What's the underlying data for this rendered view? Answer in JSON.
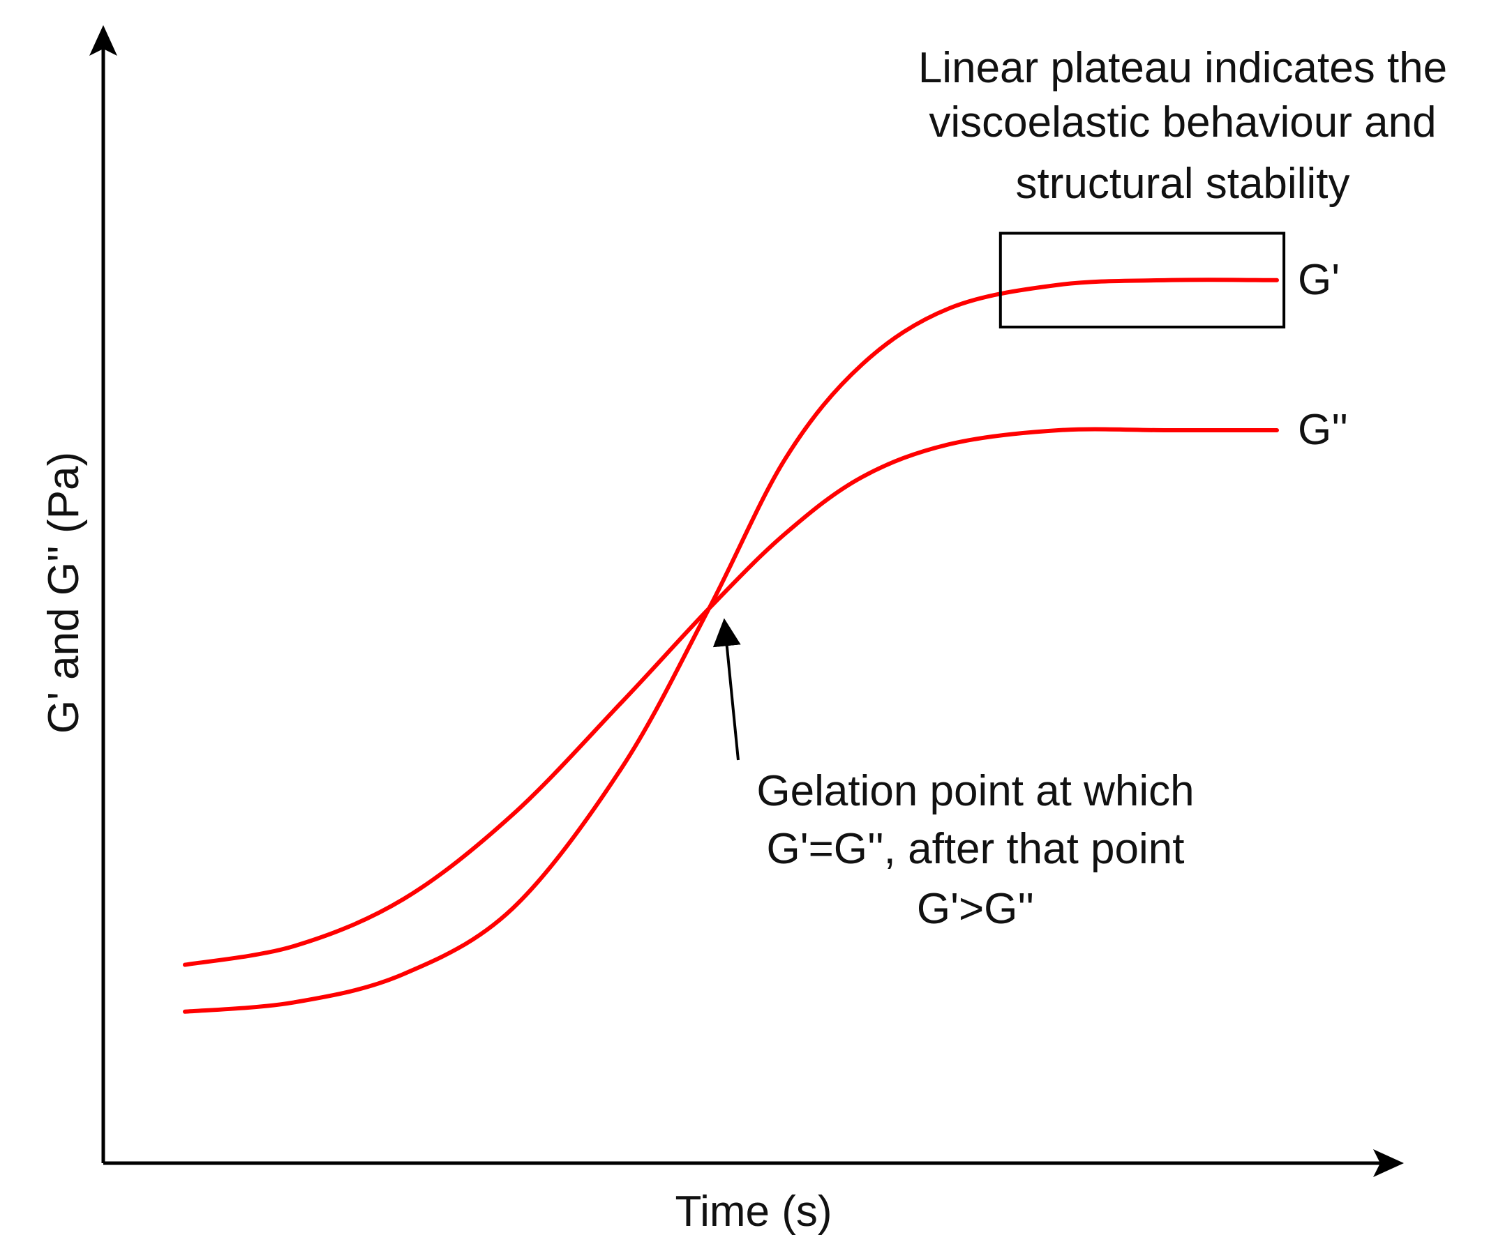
{
  "chart_data": {
    "type": "line",
    "title": "",
    "xlabel": "Time (s)",
    "ylabel": "G' and G'' (Pa)",
    "xlim": [
      0,
      100
    ],
    "ylim": [
      0,
      100
    ],
    "grid": false,
    "x": [
      0,
      10,
      20,
      30,
      40,
      48,
      55,
      62,
      70,
      80,
      90,
      100
    ],
    "series": [
      {
        "name": "G'",
        "color": "#ff0000",
        "values": [
          7,
          8,
          11,
          18,
          33,
          50,
          66,
          76,
          82,
          84.5,
          85,
          85
        ]
      },
      {
        "name": "G''",
        "color": "#ff0000",
        "values": [
          12,
          14,
          19,
          28,
          40,
          50,
          58,
          64,
          67.5,
          69,
          69,
          69
        ]
      }
    ],
    "annotations": {
      "plateau": {
        "lines": [
          "Linear plateau indicates the",
          "viscoelastic behaviour and",
          "structural stability"
        ],
        "box_x": [
          75,
          100
        ],
        "box_y": [
          80,
          90
        ]
      },
      "gelation": {
        "lines": [
          "Gelation point at which",
          "G'=G'', after that point",
          "G'>G''"
        ],
        "point": [
          48,
          50
        ]
      }
    },
    "colors": {
      "axis": "#000000",
      "curve": "#ff0000",
      "box": "#000000"
    }
  }
}
